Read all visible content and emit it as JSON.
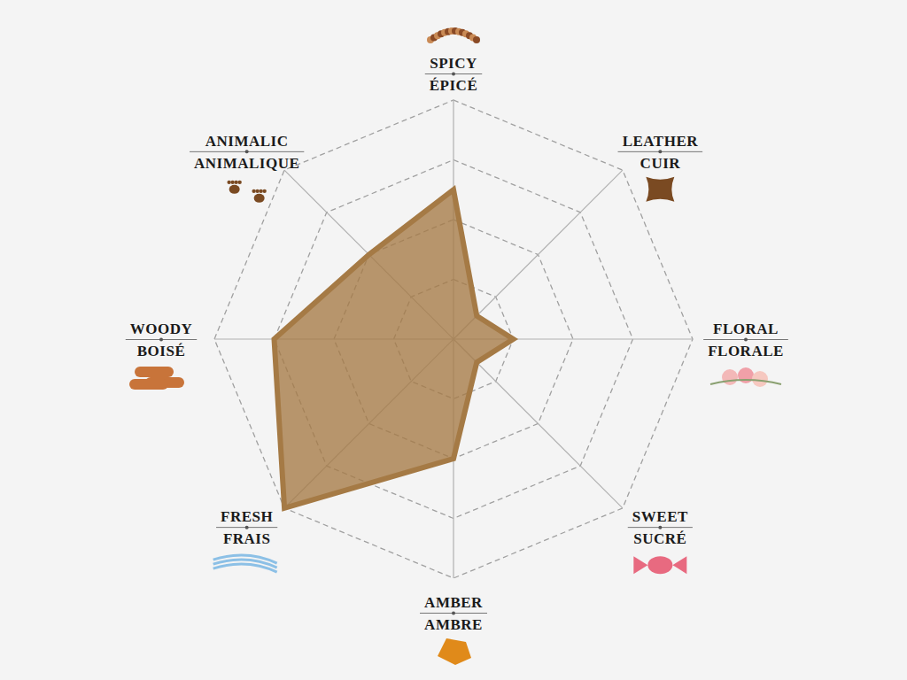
{
  "chart_data": {
    "type": "radar",
    "categories": [
      "SPICY",
      "LEATHER",
      "FLORAL",
      "SWEET",
      "AMBER",
      "FRESH",
      "WOODY",
      "ANIMALIC"
    ],
    "category_translations": [
      "ÉPICÉ",
      "CUIR",
      "FLORALE",
      "SUCRÉ",
      "AMBRE",
      "FRAIS",
      "BOISÉ",
      "ANIMALIQUE"
    ],
    "values": [
      2.5,
      0.55,
      1.0,
      0.55,
      2.0,
      4.0,
      3.0,
      2.0
    ],
    "color": "#a57a45",
    "ylim": [
      0,
      4
    ],
    "yticks": [
      1,
      2,
      3,
      4
    ],
    "grid": true,
    "tick_labels": false
  }
}
